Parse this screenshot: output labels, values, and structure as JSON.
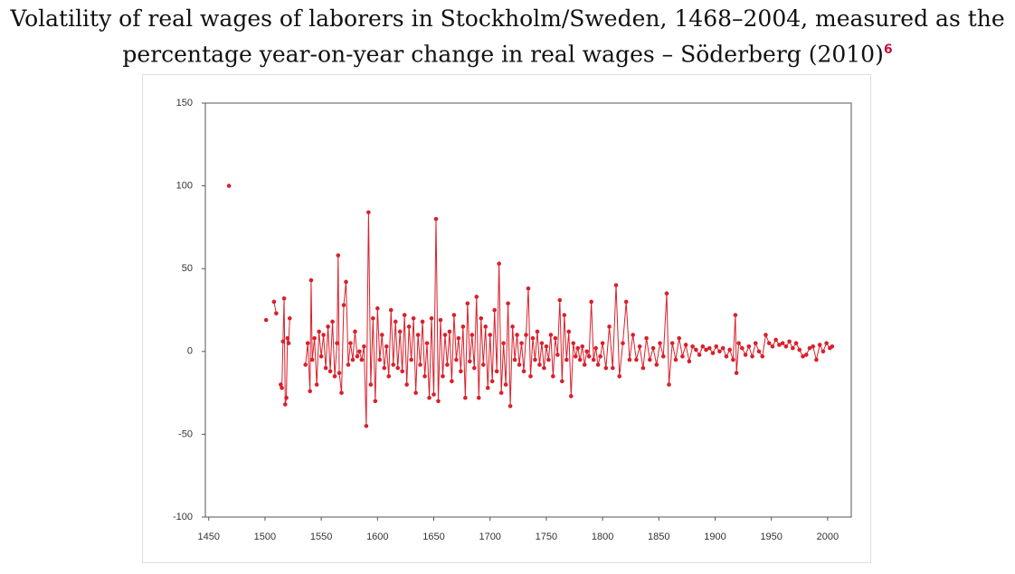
{
  "chart_data": {
    "type": "line",
    "title": "Volatility of real wages of laborers in Stockholm/Sweden, 1468–2004, measured as the percentage year-on-year change in real wages – Söderberg (2010)",
    "title_note": "6",
    "color": "#d9202b",
    "markers": true,
    "grid": false,
    "xlim": [
      1447,
      2021
    ],
    "xticks": [
      1450,
      1500,
      1550,
      1600,
      1650,
      1700,
      1750,
      1800,
      1850,
      1900,
      1950,
      2000
    ],
    "ylim": [
      -100,
      150
    ],
    "yticks": [
      -100,
      -50,
      0,
      50,
      100,
      150
    ],
    "x": [
      1468,
      null,
      1501,
      null,
      1508,
      1510,
      null,
      1514,
      1515,
      1516,
      1517,
      1518,
      1519,
      1520,
      1521,
      1522,
      null,
      1536,
      1538,
      1540,
      1541,
      1542,
      1544,
      1546,
      1548,
      1550,
      1552,
      1554,
      1556,
      1558,
      1560,
      1562,
      1564,
      1565,
      1566,
      1568,
      1570,
      1572,
      1574,
      1576,
      1578,
      1580,
      1582,
      1584,
      1586,
      1588,
      1590,
      1592,
      1594,
      1596,
      1598,
      1600,
      1602,
      1604,
      1606,
      1608,
      1610,
      1612,
      1614,
      1616,
      1618,
      1620,
      1622,
      1624,
      1626,
      1628,
      1630,
      1632,
      1634,
      1636,
      1638,
      1640,
      1642,
      1644,
      1646,
      1648,
      1650,
      1652,
      1654,
      1656,
      1658,
      1660,
      1662,
      1664,
      1666,
      1668,
      1670,
      1672,
      1674,
      1676,
      1678,
      1680,
      1682,
      1684,
      1686,
      1688,
      1690,
      1692,
      1694,
      1696,
      1698,
      1700,
      1702,
      1704,
      1706,
      1708,
      1710,
      1712,
      1714,
      1716,
      1718,
      1720,
      1722,
      1724,
      1726,
      1728,
      1730,
      1732,
      1734,
      1736,
      1738,
      1740,
      1742,
      1744,
      1746,
      1748,
      1750,
      1752,
      1754,
      1756,
      1758,
      1760,
      1762,
      1764,
      1766,
      1768,
      1770,
      1772,
      1774,
      1776,
      1778,
      1780,
      1782,
      1784,
      1786,
      1788,
      1790,
      1792,
      1794,
      1796,
      1798,
      1800,
      1803,
      1806,
      1809,
      1812,
      1815,
      1818,
      1821,
      1824,
      1827,
      1830,
      1833,
      1836,
      1839,
      1842,
      1845,
      1848,
      1851,
      1854,
      1857,
      1859,
      1862,
      1865,
      1868,
      1871,
      1874,
      1877,
      1880,
      1883,
      1886,
      1889,
      1892,
      1895,
      1898,
      1901,
      1904,
      1907,
      1910,
      1913,
      1916,
      1918,
      1919,
      1921,
      1924,
      1927,
      1930,
      1933,
      1936,
      1939,
      1942,
      1945,
      1948,
      1951,
      1954,
      1957,
      1960,
      1963,
      1966,
      1969,
      1972,
      1975,
      1978,
      1981,
      1984,
      1987,
      1990,
      1993,
      1996,
      1999,
      2002,
      2004
    ],
    "values": [
      100,
      null,
      19,
      null,
      30,
      23,
      null,
      -20,
      -22,
      6,
      32,
      -32,
      -28,
      8,
      5,
      20,
      null,
      -8,
      5,
      -24,
      43,
      -5,
      8,
      -20,
      12,
      -3,
      10,
      -10,
      15,
      -12,
      18,
      -15,
      5,
      58,
      -13,
      -25,
      28,
      42,
      -8,
      5,
      -5,
      12,
      -3,
      0,
      -5,
      3,
      -45,
      84,
      -20,
      20,
      -30,
      26,
      -5,
      10,
      -10,
      3,
      -15,
      25,
      -8,
      18,
      -10,
      12,
      -12,
      22,
      -20,
      15,
      -5,
      20,
      -25,
      10,
      -8,
      18,
      -15,
      5,
      -28,
      20,
      -26,
      80,
      -30,
      19,
      -15,
      10,
      -8,
      12,
      -18,
      22,
      -5,
      8,
      -12,
      15,
      -28,
      29,
      -6,
      10,
      -10,
      33,
      -28,
      20,
      -8,
      15,
      -22,
      10,
      -18,
      25,
      -12,
      53,
      -25,
      5,
      -20,
      29,
      -33,
      15,
      -5,
      10,
      -8,
      5,
      -12,
      10,
      38,
      -15,
      8,
      -5,
      12,
      -8,
      5,
      -10,
      3,
      -5,
      10,
      -15,
      8,
      -2,
      31,
      -18,
      22,
      -5,
      12,
      -27,
      5,
      -3,
      2,
      -5,
      3,
      -8,
      0,
      -3,
      30,
      -5,
      2,
      -8,
      -3,
      5,
      -10,
      15,
      -10,
      40,
      -15,
      5,
      30,
      -5,
      10,
      -5,
      3,
      -10,
      8,
      -5,
      2,
      -8,
      5,
      -3,
      35,
      -20,
      5,
      -5,
      8,
      -3,
      4,
      -6,
      3,
      1,
      -2,
      3,
      1,
      2,
      -1,
      3,
      0,
      2,
      -3,
      1,
      -5,
      22,
      -13,
      5,
      2,
      -2,
      3,
      -3,
      5,
      0,
      -3,
      10,
      5,
      3,
      7,
      4,
      5,
      3,
      6,
      2,
      5,
      1,
      -3,
      -2,
      2,
      3,
      -5,
      4,
      0,
      5,
      2,
      3
    ]
  }
}
